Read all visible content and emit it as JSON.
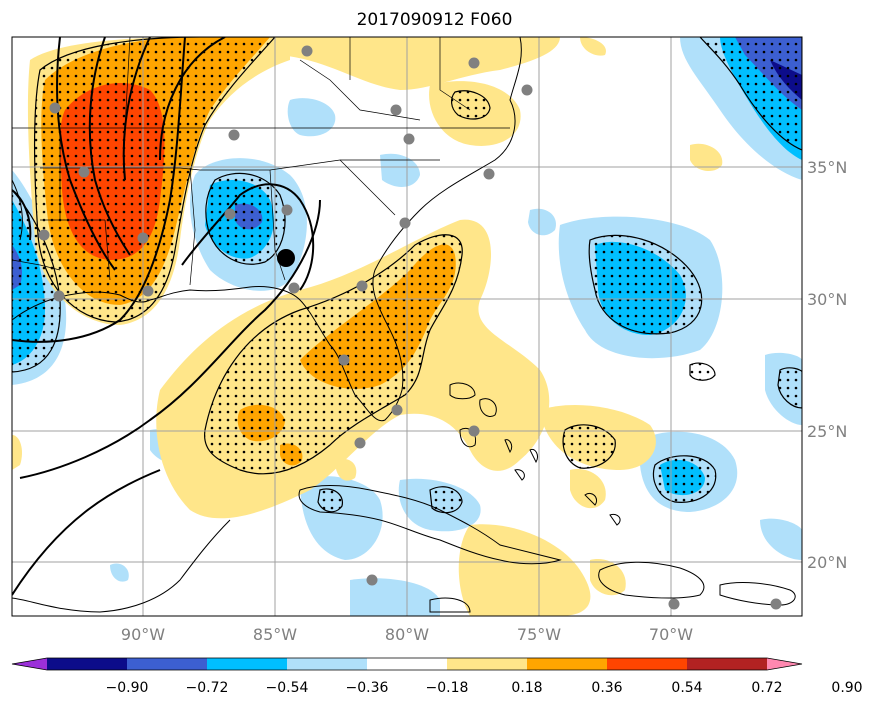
{
  "title": "2017090912 F060",
  "map": {
    "lon_labels": [
      "90°W",
      "85°W",
      "80°W",
      "75°W",
      "70°W"
    ],
    "lat_labels": [
      "35°N",
      "30°N",
      "25°N",
      "20°N"
    ],
    "colors": {
      "neg_090": "#9b30d9",
      "neg_072": "#0c0c8a",
      "neg_054": "#3c5fd1",
      "neg_036": "#00bfff",
      "neg_018": "#b0e0fa",
      "zero": "#ffffff",
      "pos_018": "#ffe68a",
      "pos_036": "#ffa500",
      "pos_054": "#ff4500",
      "pos_072": "#b22222",
      "pos_090": "#ff88b0"
    },
    "storm_marker": "black-dot",
    "station_marker": "gray-dot"
  },
  "colorbar": {
    "labels": [
      "−0.90",
      "−0.72",
      "−0.54",
      "−0.36",
      "−0.18",
      "0.18",
      "0.36",
      "0.54",
      "0.72",
      "0.90"
    ],
    "colors": [
      "#9b30d9",
      "#0c0c8a",
      "#3c5fd1",
      "#00bfff",
      "#b0e0fa",
      "#ffffff",
      "#ffe68a",
      "#ffa500",
      "#ff4500",
      "#b22222",
      "#ff88b0"
    ]
  }
}
